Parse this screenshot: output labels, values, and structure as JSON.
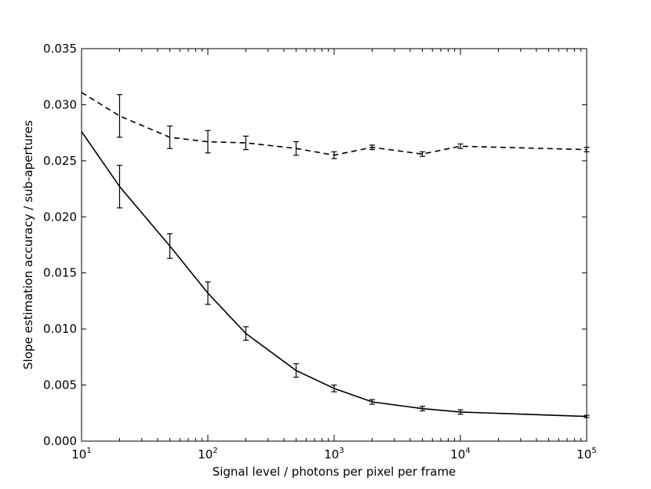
{
  "chart_data": {
    "type": "line",
    "title": "",
    "xlabel": "Signal level / photons per pixel per frame",
    "ylabel": "Slope estimation accuracy / sub-apertures",
    "xscale": "log",
    "xlim": [
      10,
      100000
    ],
    "ylim": [
      0,
      0.035
    ],
    "grid": false,
    "legend": "none",
    "x_ticks": [
      {
        "base": "10",
        "exp": "1",
        "value": 10
      },
      {
        "base": "10",
        "exp": "2",
        "value": 100
      },
      {
        "base": "10",
        "exp": "3",
        "value": 1000
      },
      {
        "base": "10",
        "exp": "4",
        "value": 10000
      },
      {
        "base": "10",
        "exp": "5",
        "value": 100000
      }
    ],
    "y_ticks": [
      "0.000",
      "0.005",
      "0.010",
      "0.015",
      "0.020",
      "0.025",
      "0.030",
      "0.035"
    ],
    "y_tick_values": [
      0,
      0.005,
      0.01,
      0.015,
      0.02,
      0.025,
      0.03,
      0.035
    ],
    "series": [
      {
        "style": "dashed",
        "color": "#000000",
        "x": [
          10,
          20,
          50,
          100,
          200,
          500,
          1000,
          2000,
          5000,
          10000,
          100000
        ],
        "y": [
          0.0311,
          0.029,
          0.0271,
          0.0267,
          0.0266,
          0.0261,
          0.0255,
          0.0262,
          0.0256,
          0.0263,
          0.026
        ],
        "err": [
          null,
          0.0019,
          0.001,
          0.001,
          0.0006,
          0.0006,
          0.0003,
          0.0002,
          0.0002,
          0.0002,
          0.0002
        ]
      },
      {
        "style": "solid",
        "color": "#000000",
        "x": [
          10,
          20,
          50,
          100,
          200,
          500,
          1000,
          2000,
          5000,
          10000,
          100000
        ],
        "y": [
          0.0276,
          0.0227,
          0.0174,
          0.0132,
          0.0096,
          0.0063,
          0.0047,
          0.0035,
          0.0029,
          0.0026,
          0.0022
        ],
        "err": [
          null,
          0.0019,
          0.0011,
          0.001,
          0.0006,
          0.0006,
          0.0003,
          0.0002,
          0.0002,
          0.0002,
          0.0001
        ]
      }
    ]
  }
}
